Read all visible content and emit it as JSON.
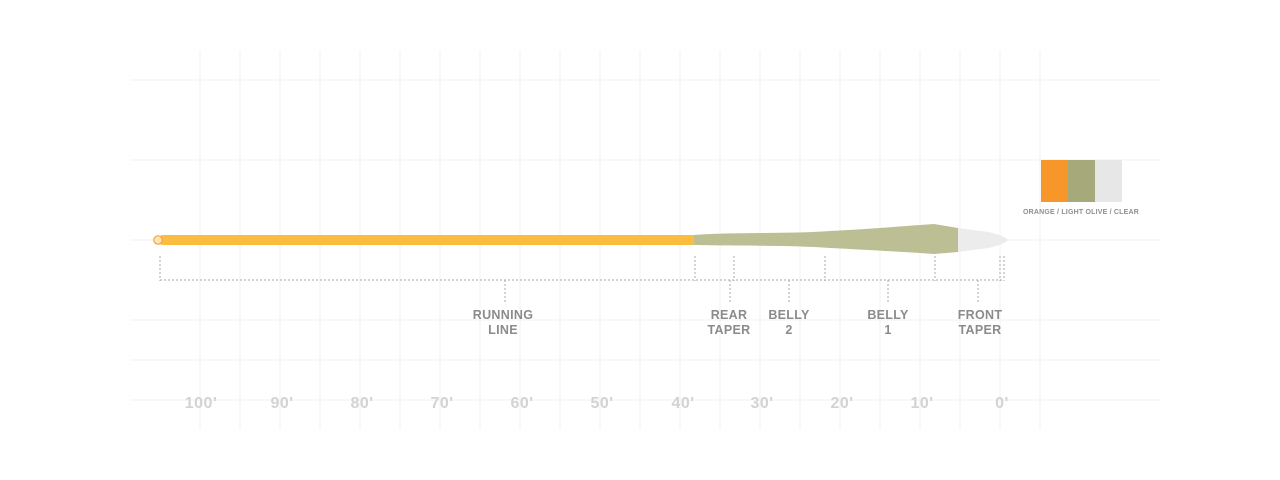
{
  "diagram": {
    "colors": {
      "running_line": "#fbbd3f",
      "head": "#bcbf93",
      "tip": "#ececec",
      "grid": "#f1f1f1",
      "bracket": "#a9a9a9"
    },
    "swatches": [
      {
        "name": "orange",
        "color": "#f7972a"
      },
      {
        "name": "light-olive",
        "color": "#a6a97a"
      },
      {
        "name": "clear",
        "color": "#e7e7e7"
      }
    ],
    "color_caption": "ORANGE / LIGHT OLIVE / CLEAR",
    "segments": [
      {
        "id": "running-line",
        "lines": [
          "RUNNING",
          "LINE"
        ]
      },
      {
        "id": "rear-taper",
        "lines": [
          "REAR",
          "TAPER"
        ]
      },
      {
        "id": "belly-2",
        "lines": [
          "BELLY",
          "2"
        ]
      },
      {
        "id": "belly-1",
        "lines": [
          "BELLY",
          "1"
        ]
      },
      {
        "id": "front-taper",
        "lines": [
          "FRONT",
          "TAPER"
        ]
      }
    ],
    "axis_ticks": [
      "100'",
      "90'",
      "80'",
      "70'",
      "60'",
      "50'",
      "40'",
      "30'",
      "20'",
      "10'",
      "0'"
    ]
  }
}
